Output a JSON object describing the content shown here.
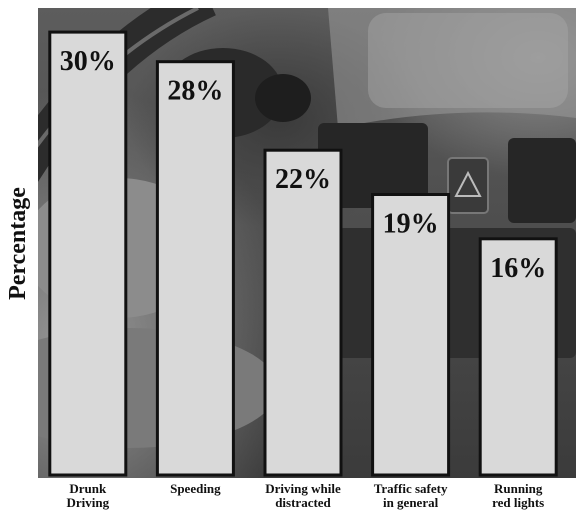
{
  "chart_data": {
    "type": "bar",
    "title": "",
    "xlabel": "",
    "ylabel": "Percentage",
    "categories": [
      "Drunk\nDriving",
      "Speeding",
      "Driving while\ndistracted",
      "Traffic safety\nin general",
      "Running\nred lights"
    ],
    "values": [
      30,
      28,
      22,
      19,
      16
    ],
    "value_labels": [
      "30%",
      "28%",
      "22%",
      "19%",
      "16%"
    ],
    "ylim": [
      0,
      31.5
    ],
    "grid": false,
    "legend": "none",
    "colors": {
      "bar_fill": "#d9d9d9",
      "bar_stroke": "#111111"
    }
  }
}
